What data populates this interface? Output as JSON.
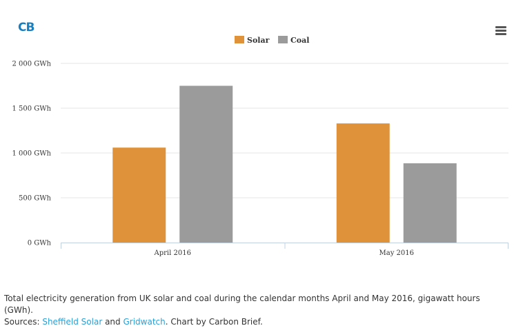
{
  "logo": {
    "text": "CB"
  },
  "menu": {
    "icon": "hamburger-icon"
  },
  "colors": {
    "solar": "#e0923a",
    "coal": "#9b9b9b",
    "logo": "#1a7fc1",
    "link": "#2a9fd6"
  },
  "chart_data": {
    "type": "bar",
    "categories": [
      "April 2016",
      "May 2016"
    ],
    "series": [
      {
        "name": "Solar",
        "values": [
          1060,
          1330
        ]
      },
      {
        "name": "Coal",
        "values": [
          1750,
          885
        ]
      }
    ],
    "ylim": [
      0,
      2000
    ],
    "yticks": [
      0,
      500,
      1000,
      1500,
      2000
    ],
    "ytick_labels": [
      "0 GWh",
      "500 GWh",
      "1 000 GWh",
      "1 500 GWh",
      "2 000 GWh"
    ],
    "legend": [
      "Solar",
      "Coal"
    ],
    "legend_position": "top-center",
    "grid": true
  },
  "caption": {
    "line1": "Total electricity generation from UK solar and coal during the calendar months April and May 2016, gigawatt hours (GWh).",
    "sources_prefix": "Sources: ",
    "link1": "Sheffield Solar",
    "and": " and ",
    "link2": "Gridwatch",
    "suffix": ". Chart by Carbon Brief."
  }
}
